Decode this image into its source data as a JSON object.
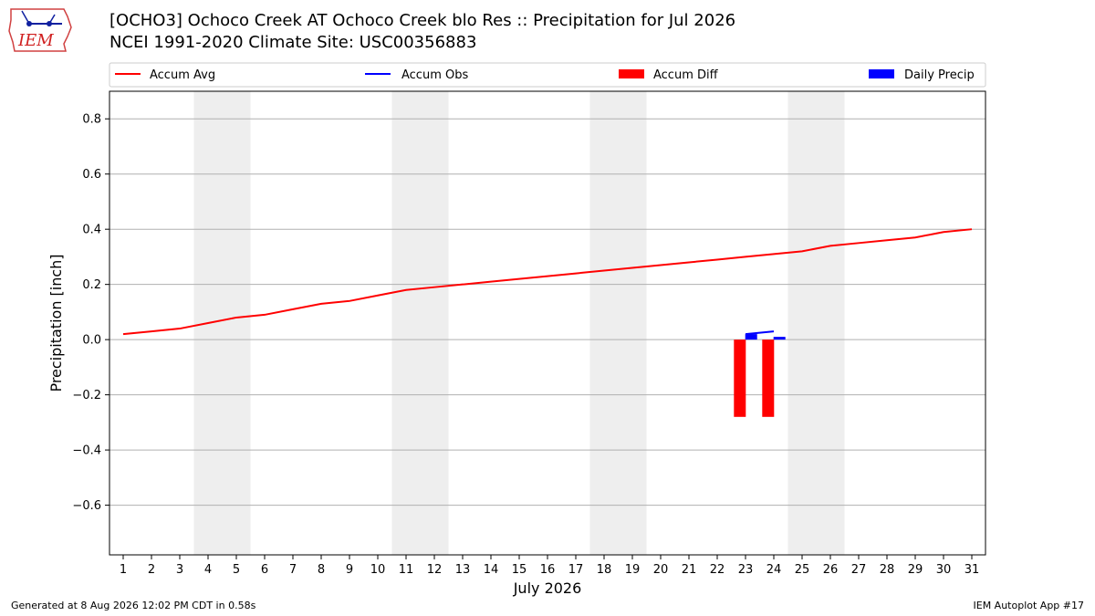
{
  "header": {
    "logo_text": "IEM",
    "title_line1": "[OCHO3] Ochoco Creek  AT Ochoco Creek blo Res :: Precipitation for Jul 2026",
    "title_line2": "NCEI 1991-2020 Climate Site: USC00356883"
  },
  "footer": {
    "left": "Generated at 8 Aug 2026 12:02 PM CDT in 0.58s",
    "right": "IEM Autoplot App #17"
  },
  "colors": {
    "accum_avg": "#ff0000",
    "accum_obs": "#0000ff",
    "accum_diff": "#ff0000",
    "daily_precip": "#0000ff",
    "weekend_shade": "#eeeeee",
    "grid": "#b0b0b0"
  },
  "chart_data": {
    "type": "line",
    "xlabel": "July 2026",
    "ylabel": "Precipitation [inch]",
    "x": [
      1,
      2,
      3,
      4,
      5,
      6,
      7,
      8,
      9,
      10,
      11,
      12,
      13,
      14,
      15,
      16,
      17,
      18,
      19,
      20,
      21,
      22,
      23,
      24,
      25,
      26,
      27,
      28,
      29,
      30,
      31
    ],
    "ylim": [
      -0.78,
      0.9
    ],
    "yticks": [
      -0.6,
      -0.4,
      -0.2,
      0.0,
      0.2,
      0.4,
      0.6,
      0.8
    ],
    "ytick_labels": [
      "−0.6",
      "−0.4",
      "−0.2",
      "0.0",
      "0.2",
      "0.4",
      "0.6",
      "0.8"
    ],
    "grid": "horizontal",
    "legend": {
      "placement": "top",
      "entries": [
        "Accum Avg",
        "Accum Obs",
        "Accum Diff",
        "Daily Precip"
      ]
    },
    "shaded_days": [
      [
        4,
        5
      ],
      [
        11,
        12
      ],
      [
        18,
        19
      ],
      [
        25,
        26
      ]
    ],
    "series": [
      {
        "name": "Accum Avg",
        "kind": "line",
        "x": [
          1,
          2,
          3,
          4,
          5,
          6,
          7,
          8,
          9,
          10,
          11,
          12,
          13,
          14,
          15,
          16,
          17,
          18,
          19,
          20,
          21,
          22,
          23,
          24,
          25,
          26,
          27,
          28,
          29,
          30,
          31
        ],
        "values": [
          0.02,
          0.03,
          0.04,
          0.06,
          0.08,
          0.09,
          0.11,
          0.13,
          0.14,
          0.16,
          0.18,
          0.19,
          0.2,
          0.21,
          0.22,
          0.23,
          0.24,
          0.25,
          0.26,
          0.27,
          0.28,
          0.29,
          0.3,
          0.31,
          0.32,
          0.34,
          0.35,
          0.36,
          0.37,
          0.39,
          0.4
        ]
      },
      {
        "name": "Accum Obs",
        "kind": "line",
        "x": [
          23,
          24
        ],
        "values": [
          0.02,
          0.03
        ]
      },
      {
        "name": "Accum Diff",
        "kind": "bar",
        "x": [
          22.8,
          23.8
        ],
        "values": [
          -0.28,
          -0.28
        ]
      },
      {
        "name": "Daily Precip",
        "kind": "bar",
        "x": [
          23.2,
          24.2
        ],
        "values": [
          0.02,
          0.01
        ]
      }
    ]
  }
}
